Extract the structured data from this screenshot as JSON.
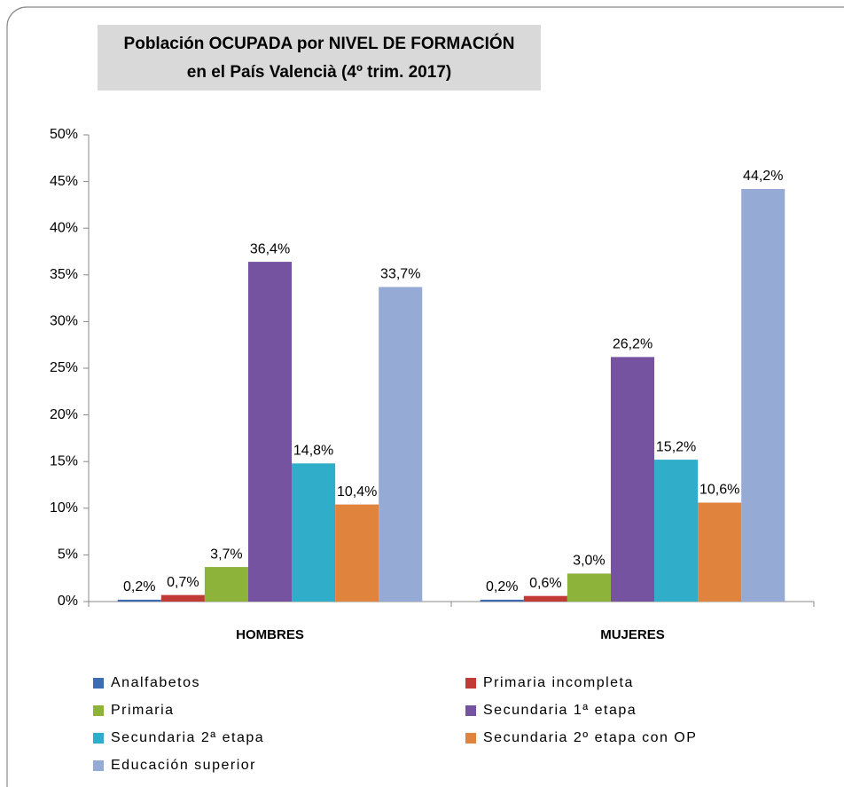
{
  "chart_data": {
    "type": "bar",
    "title": [
      "Población OCUPADA por NIVEL DE FORMACIÓN",
      "en el País Valencià (4º trim. 2017)"
    ],
    "categories": [
      "HOMBRES",
      "MUJERES"
    ],
    "series": [
      {
        "name": "Analfabetos",
        "color": "#3d6cb3",
        "values": [
          0.2,
          0.2
        ],
        "value_labels": [
          "0,2%",
          "0,2%"
        ]
      },
      {
        "name": "Primaria incompleta",
        "color": "#c23a35",
        "values": [
          0.7,
          0.6
        ],
        "value_labels": [
          "0,7%",
          "0,6%"
        ]
      },
      {
        "name": "Primaria",
        "color": "#8db33b",
        "values": [
          3.7,
          3.0
        ],
        "value_labels": [
          "3,7%",
          "3,0%"
        ]
      },
      {
        "name": "Secundaria 1ª etapa",
        "color": "#7653a0",
        "values": [
          36.4,
          26.2
        ],
        "value_labels": [
          "36,4%",
          "26,2%"
        ]
      },
      {
        "name": "Secundaria 2ª etapa",
        "color": "#2fadc9",
        "values": [
          14.8,
          15.2
        ],
        "value_labels": [
          "14,8%",
          "15,2%"
        ]
      },
      {
        "name": "Secundaria 2º etapa con OP",
        "color": "#e0833d",
        "values": [
          10.4,
          10.6
        ],
        "value_labels": [
          "10,4%",
          "10,6%"
        ]
      },
      {
        "name": "Educación superior",
        "color": "#95aad4",
        "values": [
          33.7,
          44.2
        ],
        "value_labels": [
          "33,7%",
          "44,2%"
        ]
      }
    ],
    "ylim": [
      0,
      50
    ],
    "yticks": [
      {
        "value": 0,
        "label": "0%"
      },
      {
        "value": 5,
        "label": "5%"
      },
      {
        "value": 10,
        "label": "10%"
      },
      {
        "value": 15,
        "label": "15%"
      },
      {
        "value": 20,
        "label": "20%"
      },
      {
        "value": 25,
        "label": "25%"
      },
      {
        "value": 30,
        "label": "30%"
      },
      {
        "value": 35,
        "label": "35%"
      },
      {
        "value": 40,
        "label": "40%"
      },
      {
        "value": 45,
        "label": "45%"
      },
      {
        "value": 50,
        "label": "50%"
      }
    ],
    "grid": false,
    "legend": "bottom"
  }
}
